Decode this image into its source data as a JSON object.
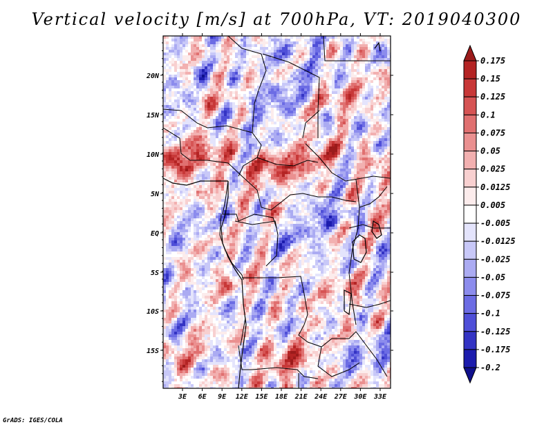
{
  "title": "Vertical velocity [m/s] at 700hPa, VT: 2019040300",
  "footer": "GrADS: IGES/COLA",
  "map": {
    "type": "heatmap",
    "variable": "Vertical velocity",
    "units": "m/s",
    "level": "700hPa",
    "valid_time": "2019040300",
    "lon_range_deg": [
      0,
      35
    ],
    "lat_range_deg": [
      -20,
      25
    ],
    "lat_ticks": [
      "20N",
      "15N",
      "10N",
      "5N",
      "EQ",
      "5S",
      "10S",
      "15S"
    ],
    "lon_ticks": [
      "3E",
      "6E",
      "9E",
      "12E",
      "15E",
      "18E",
      "21E",
      "24E",
      "27E",
      "30E",
      "33E"
    ]
  },
  "colorbar": {
    "levels": [
      "0.175",
      "0.15",
      "0.125",
      "0.1",
      "0.075",
      "0.05",
      "0.025",
      "0.0125",
      "0.005",
      "-0.005",
      "-0.0125",
      "-0.025",
      "-0.05",
      "-0.075",
      "-0.1",
      "-0.125",
      "-0.175",
      "-0.2"
    ],
    "colors": [
      "#9b1b1b",
      "#b42424",
      "#c83838",
      "#d65454",
      "#e07070",
      "#ea9090",
      "#f2b0b0",
      "#f8d0d0",
      "#fcecec",
      "#ffffff",
      "#e4e4fc",
      "#c8c8f8",
      "#ababf2",
      "#8c8ced",
      "#6c6ce4",
      "#4f4fd8",
      "#3434c4",
      "#1c1cad",
      "#0f0f8c"
    ]
  }
}
